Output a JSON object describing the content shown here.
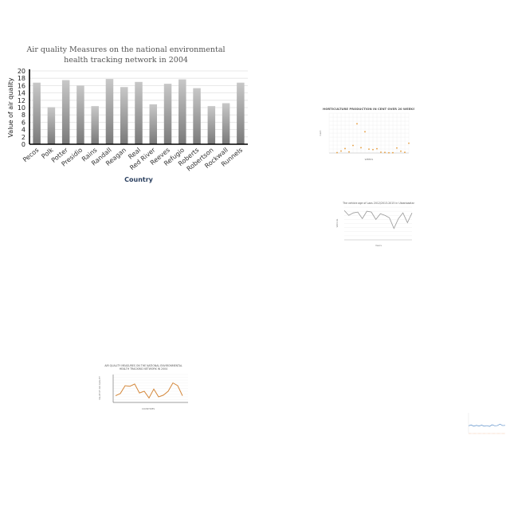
{
  "chart_data": [
    {
      "type": "bar",
      "title": "Air quality Measures on the national environmental health tracking network in 2004",
      "title_lines": [
        "Air quality Measures on the national environmental",
        "health tracking network in 2004"
      ],
      "xlabel": "Country",
      "ylabel": "Value of air quality",
      "ylim": [
        0,
        20
      ],
      "yticks": [
        0,
        2,
        4,
        6,
        8,
        10,
        12,
        14,
        16,
        18,
        20
      ],
      "grid": true,
      "categories": [
        "Pecos",
        "Polk",
        "Potter",
        "Presidio",
        "Rains",
        "Randall",
        "Reagan",
        "Real",
        "Red River",
        "Reeves",
        "Refugio",
        "Roberts",
        "Robertson",
        "Rockwall",
        "Runnels"
      ],
      "values": [
        16.8,
        10.1,
        17.5,
        16.0,
        10.4,
        17.8,
        15.6,
        17.0,
        10.9,
        16.5,
        17.7,
        15.3,
        10.4,
        11.2,
        16.8
      ],
      "colors": {
        "bar_top": "#c8c8c8",
        "bar_bottom": "#7a7a7a",
        "axis": "#000000"
      }
    },
    {
      "type": "scatter",
      "title": "HORTICULTURE PRODUCTION IN CENT OVER 20 WEEKS",
      "xlabel": "WEEKS",
      "ylabel": "Cent",
      "ylim": [
        0,
        450000
      ],
      "xlim": [
        0,
        20
      ],
      "grid": true,
      "series": [
        {
          "color": "#e69c3c",
          "points": [
            [
              2,
              4000
            ],
            [
              3,
              22000
            ],
            [
              4,
              50000
            ],
            [
              5,
              12000
            ],
            [
              6,
              85000
            ],
            [
              7,
              330000
            ],
            [
              8,
              60000
            ],
            [
              9,
              240000
            ],
            [
              10,
              44000
            ],
            [
              11,
              38000
            ],
            [
              12,
              48000
            ],
            [
              13,
              9000
            ],
            [
              14,
              6000
            ],
            [
              15,
              2000
            ],
            [
              16,
              3000
            ],
            [
              17,
              56000
            ],
            [
              18,
              20000
            ],
            [
              19,
              8000
            ],
            [
              20,
              110000
            ]
          ]
        }
      ],
      "colors": {
        "points": "#e69c3c",
        "title": "#555555"
      }
    },
    {
      "type": "line",
      "title": "The vehicle age of Laos 2012/2013-2015 in Ulaanbaatar",
      "xlabel": "Years",
      "ylabel": "Vehicle",
      "ylim": [
        0,
        40
      ],
      "grid": true,
      "series": [
        {
          "color": "#999999",
          "values": [
            36,
            30,
            33,
            34,
            26,
            35,
            34,
            25,
            32,
            30,
            27,
            14,
            26,
            33,
            21,
            33
          ]
        }
      ],
      "colors": {
        "line": "#999999"
      }
    },
    {
      "type": "line",
      "title": "AIR QUALITY MEASURES ON THE NATIONAL ENVIRONMENTAL HEALTH TRACKING NETWORK IN 2004",
      "title_lines": [
        "AIR QUALITY MEASURES ON THE NATIONAL ENVIRONMENTAL",
        "HEALTH TRACKING NETWORK IN 2004"
      ],
      "xlabel": "COUNTRIES",
      "ylabel": "VALUE OF AIR QUALITY",
      "ylim": [
        0,
        50000
      ],
      "grid": true,
      "series": [
        {
          "color": "#d4873a",
          "values": [
            12000,
            16000,
            30000,
            29000,
            33000,
            17000,
            20000,
            8000,
            24000,
            10000,
            13000,
            20000,
            35000,
            30000,
            12000
          ]
        }
      ],
      "colors": {
        "line": "#d4873a"
      }
    },
    {
      "type": "line",
      "title": "",
      "xlabel": "",
      "ylabel": "",
      "ylim": [
        0,
        10
      ],
      "grid": false,
      "series": [
        {
          "color": "#5b8fc9",
          "values": [
            6.8,
            7.2,
            6.6,
            7.0,
            6.7,
            7.1,
            6.6,
            6.9,
            6.5,
            7.3,
            6.8,
            6.9,
            7.6,
            6.9,
            7.0
          ]
        }
      ],
      "colors": {
        "line": "#5b8fc9",
        "axis": "#e89a6a"
      }
    }
  ]
}
